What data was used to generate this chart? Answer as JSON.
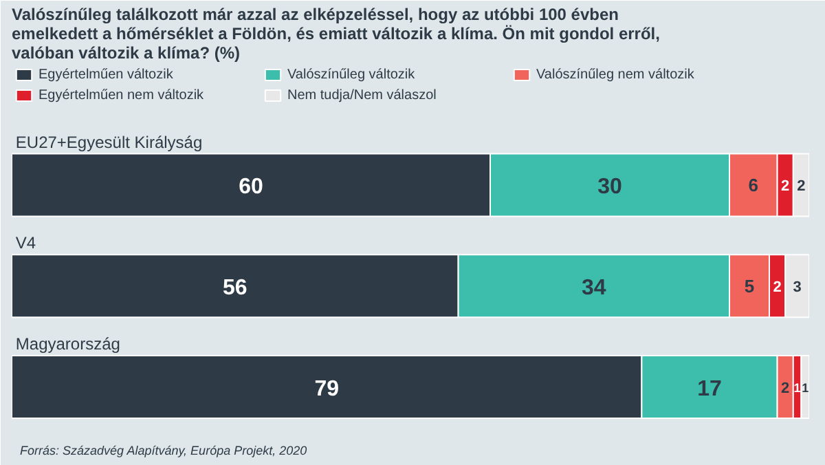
{
  "chart_data": {
    "type": "bar",
    "orientation": "horizontal",
    "stacked": true,
    "title": "Valószínűleg találkozott már azzal az elképzeléssel, hogy az utóbbi 100 évben emelkedett a hőmérséklet a Földön, és emiatt változik a klíma. Ön mit gondol erről, valóban változik a klíma? (%)",
    "categories": [
      "EU27+Egyesült Királyság",
      "V4",
      "Magyarország"
    ],
    "series": [
      {
        "name": "Egyértelműen változik",
        "color": "#2e3b46",
        "values": [
          60,
          56,
          79
        ]
      },
      {
        "name": "Valószínűleg változik",
        "color": "#3dbdac",
        "values": [
          30,
          34,
          17
        ]
      },
      {
        "name": "Valószínűleg nem változik",
        "color": "#f0645b",
        "values": [
          6,
          5,
          2
        ]
      },
      {
        "name": "Egyértelműen nem változik",
        "color": "#e01f2d",
        "values": [
          2,
          2,
          1
        ]
      },
      {
        "name": "Nem tudja/Nem válaszol",
        "color": "#e8e8e8",
        "values": [
          2,
          3,
          1
        ]
      }
    ],
    "xlim": [
      0,
      100
    ],
    "tick_labels": false,
    "grid": false,
    "legend": "top left",
    "data_labels": true,
    "annotations": [
      "Forrás: Századvég Alapítvány, Európa Projekt, 2020"
    ]
  }
}
